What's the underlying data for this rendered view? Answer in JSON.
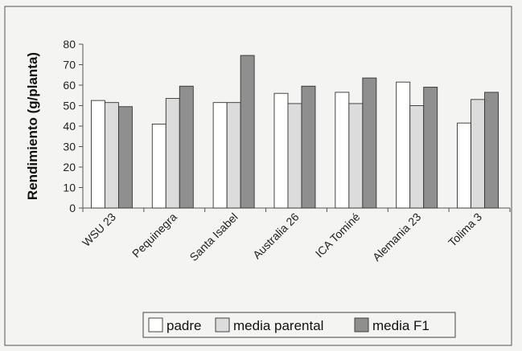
{
  "chart_data": {
    "type": "bar",
    "title": "",
    "xlabel": "",
    "ylabel": "Rendimiento (g/planta)",
    "ylim": [
      0,
      80
    ],
    "yticks": [
      0,
      10,
      20,
      30,
      40,
      50,
      60,
      70,
      80
    ],
    "grid": false,
    "legend_position": "bottom",
    "categories": [
      "WSU 23",
      "Pequinegra",
      "Santa Isabel",
      "Australia 26",
      "ICA Tominé",
      "Alemania 23",
      "Tolima 3"
    ],
    "series": [
      {
        "name": "padre",
        "color": "#ffffff",
        "values": [
          52.5,
          41,
          51.5,
          56,
          56.5,
          61.5,
          41.5
        ]
      },
      {
        "name": "media parental",
        "color": "#dcdcdc",
        "values": [
          51.5,
          53.5,
          51.5,
          51,
          51,
          50,
          53
        ]
      },
      {
        "name": "media F1",
        "color": "#8f8f8f",
        "values": [
          49.5,
          59.5,
          74.5,
          59.5,
          63.5,
          59,
          56.5
        ]
      }
    ]
  }
}
